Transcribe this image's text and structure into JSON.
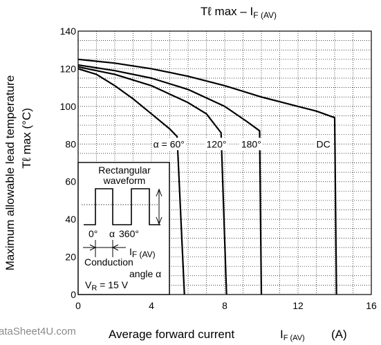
{
  "chart_data": {
    "type": "line",
    "title": {
      "main": "Tℓ max – I",
      "sub": "F (AV)"
    },
    "ylabel": {
      "line1": "Maximum allowable lead temperature",
      "line2": "Tℓ max    (°C)"
    },
    "xlabel": {
      "main": "Average forward current",
      "symbol": "I",
      "sub": "F (AV)",
      "unit": "(A)"
    },
    "watermark": "ataSheet4U.com",
    "xlim": [
      0,
      16
    ],
    "ylim": [
      0,
      140
    ],
    "xticks": [
      0,
      4,
      8,
      12,
      16
    ],
    "yticks": [
      0,
      20,
      40,
      60,
      80,
      100,
      120,
      140
    ],
    "grid": true,
    "series": [
      {
        "name": "α = 60°",
        "points": [
          [
            0,
            120
          ],
          [
            1,
            117
          ],
          [
            2,
            111
          ],
          [
            3,
            104
          ],
          [
            4,
            96
          ],
          [
            5,
            88
          ],
          [
            5.4,
            84
          ],
          [
            5.8,
            0
          ]
        ]
      },
      {
        "name": "120°",
        "points": [
          [
            0,
            121
          ],
          [
            2,
            117
          ],
          [
            4,
            111
          ],
          [
            6,
            102
          ],
          [
            7,
            96
          ],
          [
            7.8,
            86
          ],
          [
            8.1,
            0
          ]
        ]
      },
      {
        "name": "180°",
        "points": [
          [
            0,
            122
          ],
          [
            2,
            119
          ],
          [
            4,
            115
          ],
          [
            6,
            109
          ],
          [
            8,
            100
          ],
          [
            9.2,
            92
          ],
          [
            9.9,
            87
          ],
          [
            10,
            0
          ]
        ]
      },
      {
        "name": "DC",
        "points": [
          [
            0,
            125
          ],
          [
            2,
            123
          ],
          [
            4,
            120
          ],
          [
            6,
            116
          ],
          [
            8,
            111
          ],
          [
            10,
            105
          ],
          [
            12,
            100
          ],
          [
            13,
            97.5
          ],
          [
            14,
            94
          ],
          [
            14.1,
            0
          ]
        ]
      }
    ],
    "curve_labels": [
      {
        "text": "α = 60°",
        "x": 4.1,
        "y": 80
      },
      {
        "text": "120°",
        "x": 7.0,
        "y": 80
      },
      {
        "text": "180°",
        "x": 8.9,
        "y": 80
      },
      {
        "text": "DC",
        "x": 13.0,
        "y": 80
      }
    ],
    "inset": {
      "title_line1": "Rectangular",
      "title_line2": "waveform",
      "angle_0": "0°",
      "angle_alpha": "α",
      "angle_360": "360°",
      "current_label": "I",
      "current_sub": "F (AV)",
      "conduction_line1": "Conduction",
      "conduction_line2": "angle α",
      "voltage_label": "V",
      "voltage_sub": "R",
      "voltage_value": " = 15 V"
    }
  }
}
